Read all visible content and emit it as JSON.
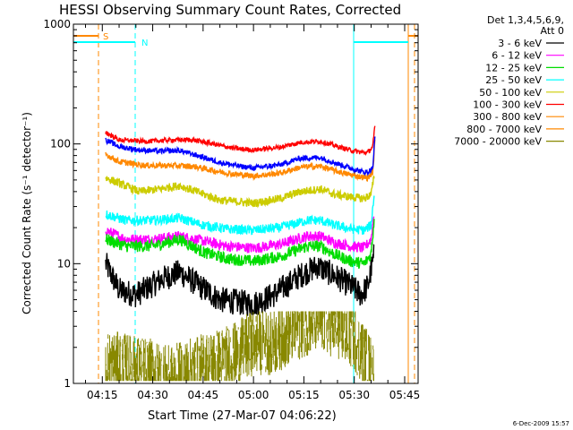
{
  "chart_data": {
    "type": "line",
    "title": "HESSI Observing Summary Count Rates, Corrected",
    "xlabel": "Start Time (27-Mar-07 04:06:22)",
    "ylabel": "Corrected Count Rate (s⁻¹ detector⁻¹)",
    "ylog": true,
    "ylim": [
      1,
      1000
    ],
    "xlim_minutes_after_0400": [
      6.4,
      49.0
    ],
    "x_ticks": [
      "04:15",
      "04:30",
      "04:45",
      "05:00",
      "05:15",
      "05:30",
      "05:45"
    ],
    "x_tick_minutes_after_0400": [
      15,
      30,
      45,
      60,
      75,
      90,
      105
    ],
    "y_ticks": [
      "1",
      "10",
      "100",
      "1000"
    ],
    "y_tick_values": [
      1,
      10,
      100,
      1000
    ],
    "legend_header": [
      "Det 1,3,4,5,6,9,",
      "Att 0"
    ],
    "legend_position": "right-outside",
    "series": [
      {
        "name": "3 - 6 keV",
        "color": "#000000",
        "points": [
          [
            16,
            10
          ],
          [
            20,
            6
          ],
          [
            25,
            5.5
          ],
          [
            33,
            7.5
          ],
          [
            38,
            8.5
          ],
          [
            44,
            6.5
          ],
          [
            50,
            5
          ],
          [
            60,
            4.6
          ],
          [
            66,
            5.5
          ],
          [
            74,
            8
          ],
          [
            79,
            9.5
          ],
          [
            84,
            8
          ],
          [
            89,
            6.5
          ],
          [
            92,
            5.5
          ],
          [
            94,
            6.5
          ],
          [
            96,
            12
          ]
        ]
      },
      {
        "name": "6 - 12 keV",
        "color": "#ff00ff",
        "points": [
          [
            16,
            19
          ],
          [
            22,
            16
          ],
          [
            30,
            16
          ],
          [
            38,
            17
          ],
          [
            45,
            15.5
          ],
          [
            52,
            14
          ],
          [
            60,
            13.5
          ],
          [
            68,
            14.5
          ],
          [
            76,
            17
          ],
          [
            80,
            17
          ],
          [
            84,
            15
          ],
          [
            89,
            14
          ],
          [
            93,
            13.5
          ],
          [
            95,
            16
          ],
          [
            96,
            28
          ]
        ]
      },
      {
        "name": "12 - 25 keV",
        "color": "#00dd00",
        "points": [
          [
            16,
            16
          ],
          [
            22,
            14
          ],
          [
            30,
            14
          ],
          [
            38,
            16
          ],
          [
            45,
            12.5
          ],
          [
            52,
            11
          ],
          [
            60,
            10.5
          ],
          [
            68,
            11.5
          ],
          [
            76,
            14
          ],
          [
            80,
            14
          ],
          [
            84,
            12
          ],
          [
            89,
            10.5
          ],
          [
            93,
            10
          ],
          [
            95,
            12
          ],
          [
            96,
            25
          ]
        ]
      },
      {
        "name": "25 - 50 keV",
        "color": "#00ffff",
        "points": [
          [
            16,
            26
          ],
          [
            22,
            23
          ],
          [
            30,
            23
          ],
          [
            38,
            24
          ],
          [
            45,
            21
          ],
          [
            52,
            19.5
          ],
          [
            60,
            19
          ],
          [
            68,
            20
          ],
          [
            76,
            23
          ],
          [
            80,
            23
          ],
          [
            84,
            21
          ],
          [
            89,
            19.5
          ],
          [
            93,
            19
          ],
          [
            95,
            21
          ],
          [
            96,
            40
          ]
        ]
      },
      {
        "name": "50 - 100 keV",
        "color": "#cccc00",
        "points": [
          [
            16,
            52
          ],
          [
            20,
            47
          ],
          [
            26,
            40
          ],
          [
            32,
            42
          ],
          [
            38,
            45
          ],
          [
            44,
            39
          ],
          [
            50,
            34
          ],
          [
            60,
            32
          ],
          [
            68,
            35
          ],
          [
            74,
            40
          ],
          [
            80,
            42
          ],
          [
            84,
            38
          ],
          [
            89,
            36
          ],
          [
            93,
            35
          ],
          [
            95,
            38
          ],
          [
            96,
            55
          ]
        ]
      },
      {
        "name": "100 - 300 keV",
        "color": "#ff0000",
        "points": [
          [
            16,
            125
          ],
          [
            20,
            108
          ],
          [
            28,
            105
          ],
          [
            36,
            108
          ],
          [
            42,
            108
          ],
          [
            48,
            100
          ],
          [
            54,
            92
          ],
          [
            60,
            89
          ],
          [
            68,
            94
          ],
          [
            74,
            103
          ],
          [
            80,
            105
          ],
          [
            84,
            97
          ],
          [
            88,
            90
          ],
          [
            92,
            85
          ],
          [
            94,
            85
          ],
          [
            95.5,
            95
          ],
          [
            96.2,
            145
          ]
        ]
      },
      {
        "name": "300 - 800 keV",
        "color": "#ff8800",
        "points": [
          [
            16,
            82
          ],
          [
            20,
            71
          ],
          [
            28,
            66
          ],
          [
            36,
            66
          ],
          [
            42,
            65
          ],
          [
            48,
            60
          ],
          [
            54,
            56
          ],
          [
            60,
            54
          ],
          [
            68,
            57
          ],
          [
            74,
            64
          ],
          [
            80,
            65
          ],
          [
            84,
            60
          ],
          [
            88,
            56
          ],
          [
            92,
            53
          ],
          [
            94,
            52
          ],
          [
            95.5,
            58
          ],
          [
            96.2,
            110
          ]
        ]
      },
      {
        "name": "800 - 7000 keV",
        "color": "#ff8800",
        "points": []
      },
      {
        "name": "7000 - 20000 keV",
        "color": "#888800",
        "points": [
          [
            16,
            1.5
          ],
          [
            22,
            1.4
          ],
          [
            28,
            1.3
          ],
          [
            35,
            1.1
          ],
          [
            42,
            1.3
          ],
          [
            48,
            1.5
          ],
          [
            54,
            1.7
          ],
          [
            60,
            2.2
          ],
          [
            66,
            2.2
          ],
          [
            72,
            2.8
          ],
          [
            78,
            3.4
          ],
          [
            84,
            3.1
          ],
          [
            90,
            2.4
          ],
          [
            94,
            1.5
          ],
          [
            96,
            1.2
          ]
        ]
      },
      {
        "name": "",
        "color": "#0000ff",
        "points": [
          [
            16,
            108
          ],
          [
            20,
            95
          ],
          [
            26,
            89
          ],
          [
            32,
            87
          ],
          [
            38,
            88
          ],
          [
            44,
            79
          ],
          [
            50,
            70
          ],
          [
            56,
            65
          ],
          [
            60,
            63
          ],
          [
            68,
            67
          ],
          [
            74,
            76
          ],
          [
            80,
            77
          ],
          [
            84,
            70
          ],
          [
            88,
            64
          ],
          [
            92,
            59
          ],
          [
            94,
            58
          ],
          [
            95.5,
            63
          ],
          [
            96.2,
            120
          ]
        ]
      }
    ],
    "flag_markers": [
      {
        "label": "S",
        "color": "#ff8800"
      },
      {
        "label": "N",
        "color": "#00ffff"
      }
    ]
  },
  "footer_date": "6-Dec-2009 15:57"
}
